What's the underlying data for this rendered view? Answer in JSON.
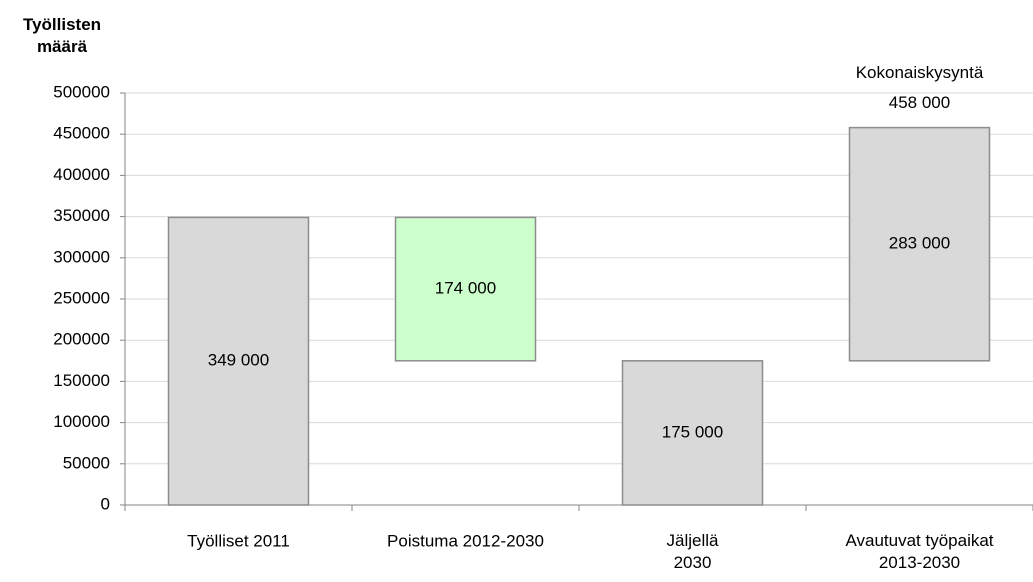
{
  "chart_data": {
    "type": "waterfall",
    "ylabel": "Työllisten\nmäärä",
    "categories": [
      "Työlliset 2011",
      "Poistuma 2012-2030",
      "Jäljellä\n2030",
      "Avautuvat työpaikat\n2013-2030"
    ],
    "values": [
      349000,
      174000,
      175000,
      283000
    ],
    "value_labels": [
      "349 000",
      "174 000",
      "175 000",
      "283 000"
    ],
    "measures": [
      "absolute",
      "decrease",
      "absolute",
      "increase"
    ],
    "colors": [
      "#d9d9d9",
      "#ccffcc",
      "#d9d9d9",
      "#d9d9d9"
    ],
    "annotation": {
      "text": "Kokonaiskysyntä",
      "value": 458000,
      "value_label": "458 000"
    },
    "ylim": [
      0,
      500000
    ],
    "yticks": [
      0,
      50000,
      100000,
      150000,
      200000,
      250000,
      300000,
      350000,
      400000,
      450000,
      500000
    ],
    "grid": true
  }
}
